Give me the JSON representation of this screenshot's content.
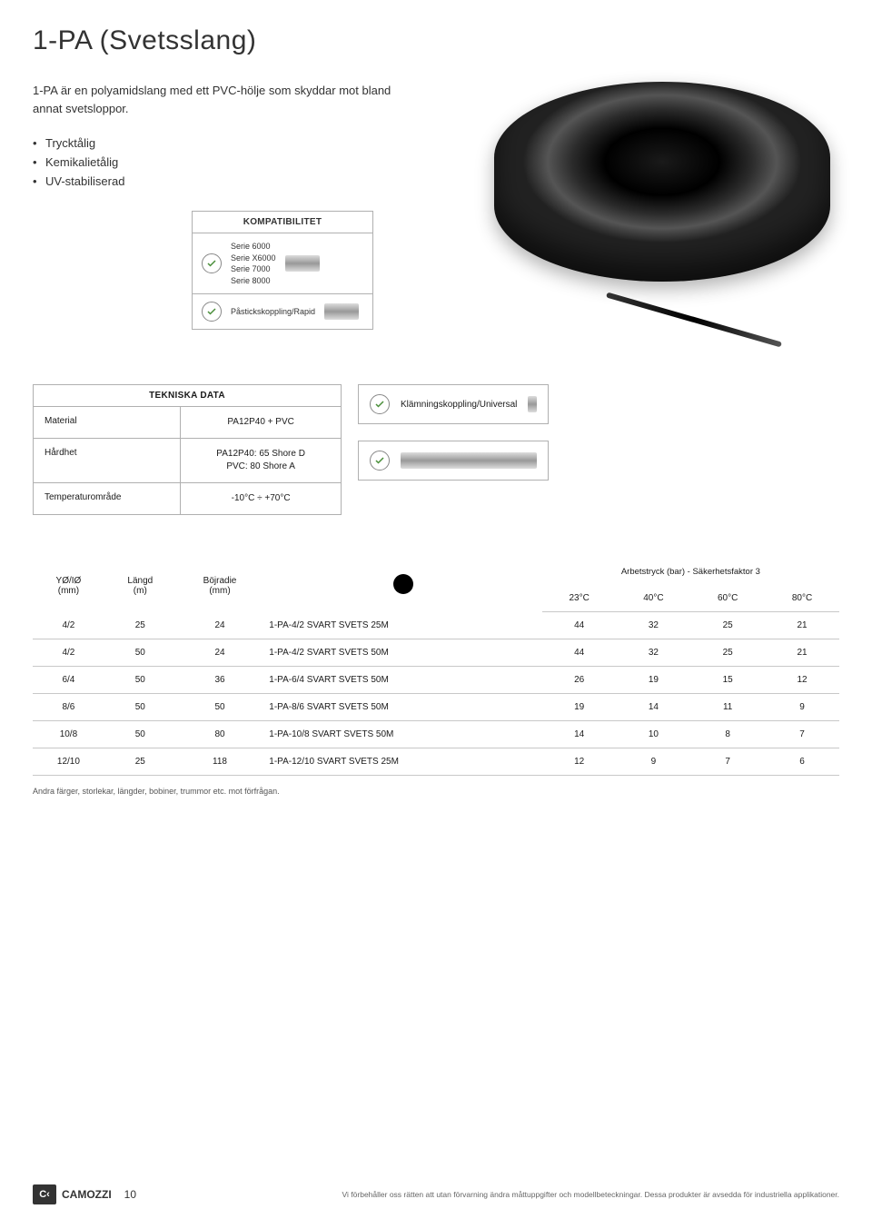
{
  "title": "1-PA (Svetsslang)",
  "description": "1-PA är en polyamidslang med ett PVC-hölje som skyddar mot bland annat svetsloppor.",
  "bullets": [
    "Trycktålig",
    "Kemikalietålig",
    "UV-stabiliserad"
  ],
  "kompat": {
    "header": "KOMPATIBILITET",
    "series": [
      "Serie 6000",
      "Serie X6000",
      "Serie 7000",
      "Serie 8000"
    ],
    "rapid": "Påstickskoppling/Rapid"
  },
  "tekniska": {
    "header": "TEKNISKA DATA",
    "rows": [
      {
        "k": "Material",
        "v": "PA12P40 + PVC"
      },
      {
        "k": "Hårdhet",
        "v": "PA12P40: 65 Shore D\nPVC: 80 Shore A"
      },
      {
        "k": "Temperaturområde",
        "v": "-10°C ÷ +70°C"
      }
    ]
  },
  "side": {
    "klam": "Klämningskoppling/Universal"
  },
  "table": {
    "work_header": "Arbetstryck (bar) - Säkerhetsfaktor 3",
    "columns": {
      "yo": "YØ/IØ\n(mm)",
      "langd": "Längd\n(m)",
      "boj": "Böjradie\n(mm)",
      "t23": "23°C",
      "t40": "40°C",
      "t60": "60°C",
      "t80": "80°C"
    },
    "swatch_color": "#000000",
    "rows": [
      {
        "yo": "4/2",
        "langd": "25",
        "boj": "24",
        "part": "1-PA-4/2 SVART SVETS 25M",
        "v": [
          "44",
          "32",
          "25",
          "21"
        ]
      },
      {
        "yo": "4/2",
        "langd": "50",
        "boj": "24",
        "part": "1-PA-4/2 SVART SVETS 50M",
        "v": [
          "44",
          "32",
          "25",
          "21"
        ]
      },
      {
        "yo": "6/4",
        "langd": "50",
        "boj": "36",
        "part": "1-PA-6/4 SVART SVETS 50M",
        "v": [
          "26",
          "19",
          "15",
          "12"
        ]
      },
      {
        "yo": "8/6",
        "langd": "50",
        "boj": "50",
        "part": "1-PA-8/6 SVART SVETS 50M",
        "v": [
          "19",
          "14",
          "11",
          "9"
        ]
      },
      {
        "yo": "10/8",
        "langd": "50",
        "boj": "80",
        "part": "1-PA-10/8 SVART SVETS 50M",
        "v": [
          "14",
          "10",
          "8",
          "7"
        ]
      },
      {
        "yo": "12/10",
        "langd": "25",
        "boj": "118",
        "part": "1-PA-12/10 SVART SVETS 25M",
        "v": [
          "12",
          "9",
          "7",
          "6"
        ]
      }
    ],
    "note": "Andra färger, storlekar, längder, bobiner, trummor etc. mot förfrågan."
  },
  "footer": {
    "logo": "CAMOZZI",
    "page": "10",
    "disclaimer": "Vi förbehåller oss rätten att utan förvarning ändra måttuppgifter och modellbeteckningar. Dessa produkter är avsedda för industriella applikationer."
  },
  "colors": {
    "border": "#b0b0b0",
    "text": "#333333",
    "accent_check": "#4a8f3a"
  }
}
